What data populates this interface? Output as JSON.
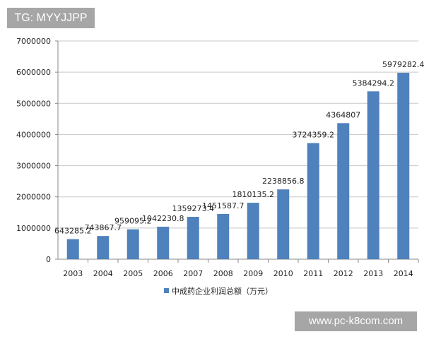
{
  "watermark_top": "TG: MYYJJPP",
  "watermark_bottom": "www.pc-k8com.com",
  "chart_data": {
    "type": "bar",
    "categories": [
      "2003",
      "2004",
      "2005",
      "2006",
      "2007",
      "2008",
      "2009",
      "2010",
      "2011",
      "2012",
      "2013",
      "2014"
    ],
    "series": [
      {
        "name": "中成药企业利润总额（万元）",
        "values": [
          643285.2,
          743867.7,
          959095.2,
          1042230.8,
          1359273.4,
          1451587.7,
          1810135.2,
          2238856.8,
          3724359.2,
          4364807,
          5384294.2,
          5979282.4
        ],
        "labels": [
          "643285.2",
          "743867.7",
          "959095.2",
          "1042230.8",
          "1359273.4",
          "1451587.7",
          "1810135.2",
          "2238856.8",
          "3724359.2",
          "4364807",
          "5384294.2",
          "5979282.4"
        ],
        "color": "#4f81bd"
      }
    ],
    "yticks": [
      "0",
      "1000000",
      "2000000",
      "3000000",
      "4000000",
      "5000000",
      "6000000",
      "7000000"
    ],
    "ylim": [
      0,
      7000000
    ],
    "grid": true,
    "legend": "bottom"
  }
}
